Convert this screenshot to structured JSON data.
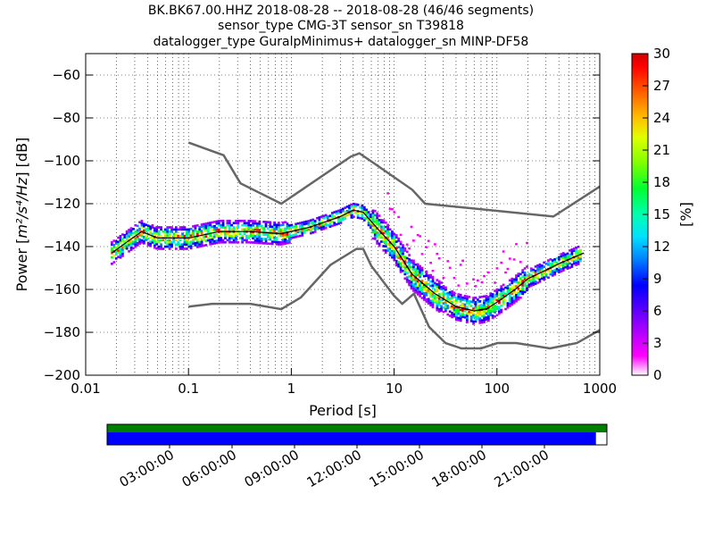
{
  "title": {
    "line1": "BK.BK67.00.HHZ   2018-08-28 -- 2018-08-28  (46/46 segments)",
    "line2": "sensor_type CMG-3T sensor_sn T39818",
    "line3": "datalogger_type GuralpMinimus+ datalogger_sn MINP-DF58"
  },
  "colors": {
    "noise_model": "#666666",
    "mode_line": "#000000",
    "coverage_top": "#007f00",
    "coverage_bottom": "#0000ff",
    "colormap": [
      "#ffffff",
      "#ff00ff",
      "#8000ff",
      "#0000ff",
      "#00bfff",
      "#00ff80",
      "#80ff00",
      "#ffff00",
      "#ff8000",
      "#ff0000",
      "#c00000"
    ]
  },
  "chart_data": [
    {
      "type": "heatmap",
      "xlabel": "Period [s]",
      "ylabel": "Power [m²/s⁴/Hz] [dB]",
      "ylabel_prefix": "Power [",
      "ylabel_units": "m²/s⁴/Hz",
      "ylabel_suffix": "] [dB]",
      "x_scale": "log",
      "xlim": [
        0.01,
        1000
      ],
      "ylim": [
        -200,
        -50
      ],
      "x_ticks": [
        0.01,
        0.1,
        1,
        10,
        100,
        1000
      ],
      "x_tick_labels": [
        "0.01",
        "0.1",
        "1",
        "10",
        "100",
        "1000"
      ],
      "y_ticks": [
        -200,
        -180,
        -160,
        -140,
        -120,
        -100,
        -80,
        -60
      ],
      "y_tick_labels": [
        "−200",
        "−180",
        "−160",
        "−140",
        "−120",
        "−100",
        "−80",
        "−60"
      ],
      "grid": true,
      "colorbar": {
        "label": "[%]",
        "range": [
          0,
          30
        ],
        "ticks": [
          "0",
          "3",
          "6",
          "9",
          "12",
          "15",
          "18",
          "21",
          "24",
          "27",
          "30"
        ]
      },
      "series": [
        {
          "role": "new_high_noise_model",
          "x": [
            0.1,
            0.22,
            0.32,
            0.8,
            3.8,
            4.6,
            6.3,
            15,
            20,
            354,
            1000
          ],
          "y": [
            -91.5,
            -97.4,
            -110.5,
            -120,
            -98,
            -96.5,
            -101,
            -113.5,
            -120,
            -126,
            -112
          ]
        },
        {
          "role": "new_low_noise_model",
          "x": [
            0.1,
            0.17,
            0.4,
            0.8,
            1.24,
            2.4,
            4.3,
            5.0,
            6.0,
            10,
            12,
            15.6,
            21.9,
            31.6,
            45,
            70,
            101,
            154,
            328,
            600,
            1000
          ],
          "y": [
            -168,
            -166.7,
            -166.7,
            -169.2,
            -163.7,
            -148.6,
            -141.1,
            -141.1,
            -149,
            -163,
            -166.7,
            -162,
            -177.5,
            -185,
            -187.5,
            -187.5,
            -185,
            -185,
            -187.5,
            -185,
            -178.9
          ]
        },
        {
          "role": "mode_pdf_line",
          "x": [
            0.018,
            0.025,
            0.035,
            0.05,
            0.1,
            0.2,
            0.4,
            0.8,
            1.5,
            3,
            4,
            5,
            7,
            10,
            15,
            25,
            40,
            60,
            80,
            100,
            150,
            200,
            300,
            400,
            700
          ],
          "y": [
            -143,
            -138,
            -133,
            -136,
            -136,
            -133,
            -133,
            -134,
            -131,
            -126,
            -123,
            -124,
            -132,
            -140,
            -153,
            -162,
            -168,
            -170,
            -169,
            -166,
            -160,
            -155,
            -151,
            -148,
            -143
          ]
        }
      ]
    },
    {
      "type": "table",
      "x_tick_labels": [
        "03:00:00",
        "06:00:00",
        "09:00:00",
        "12:00:00",
        "15:00:00",
        "18:00:00",
        "21:00:00"
      ],
      "data_coverage_fraction": 0.978,
      "psd_coverage_fraction": 1.0
    }
  ]
}
